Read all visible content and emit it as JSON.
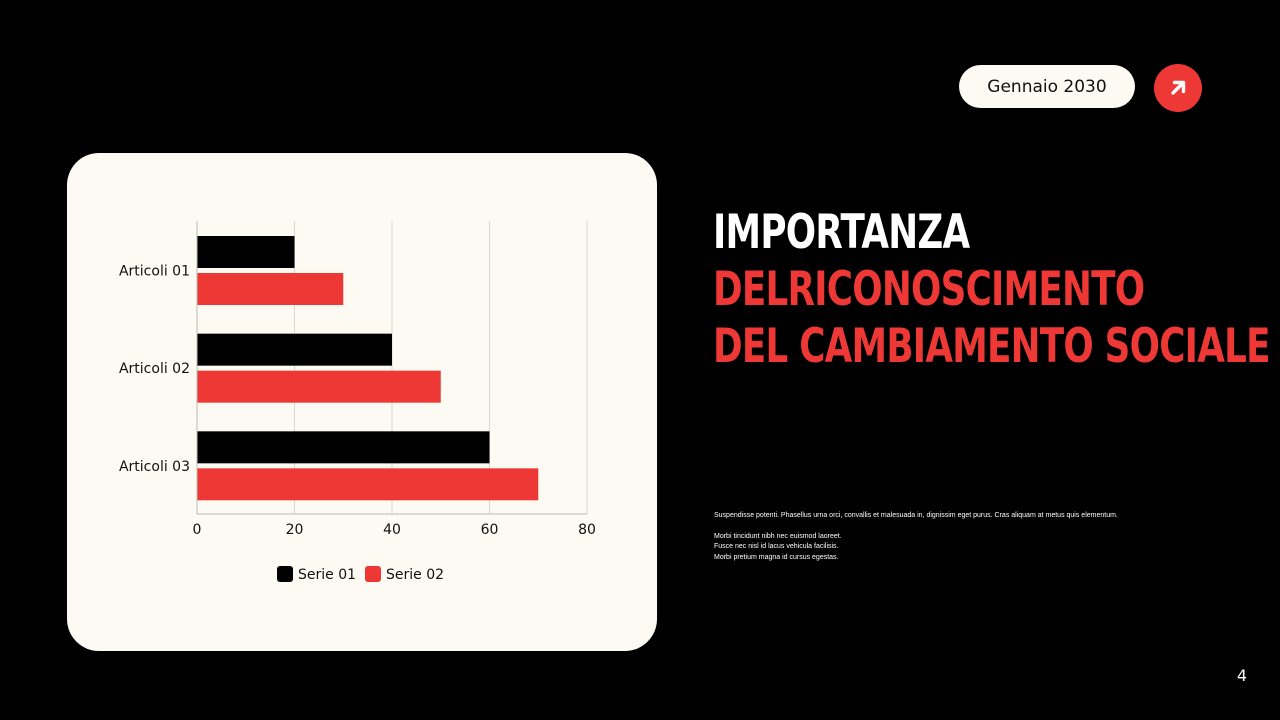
{
  "header": {
    "date": "Gennaio 2030",
    "arrow_icon": "arrow-up-right-icon"
  },
  "title": {
    "line1": "IMPORTANZA",
    "line2": "DELRICONOSCIMENTO",
    "line3": "DEL CAMBIAMENTO SOCIALE"
  },
  "body": {
    "paragraph1": "Suspendisse potenti. Phasellus urna orci, convallis et malesuada in, dignissim eget purus. Cras aliquam at metus quis elementum.",
    "line1": "Morbi tincidunt nibh nec euismod laoreet.",
    "line2": "Fusce nec nisl id lacus vehicula facilisis.",
    "line3": "Morbi pretium magna id cursus egestas."
  },
  "page_number": "4",
  "colors": {
    "accent": "#ee3835",
    "dark": "#000000",
    "card": "#fcfaf2"
  },
  "chart_data": {
    "type": "bar",
    "orientation": "horizontal",
    "categories": [
      "Articoli 01",
      "Articoli 02",
      "Articoli 03"
    ],
    "series": [
      {
        "name": "Serie 01",
        "values": [
          20,
          40,
          60
        ],
        "color": "#000000"
      },
      {
        "name": "Serie 02",
        "values": [
          30,
          50,
          70
        ],
        "color": "#ee3835"
      }
    ],
    "xlim": [
      0,
      80
    ],
    "xticks": [
      0,
      20,
      40,
      60,
      80
    ],
    "legend": "bottom-center",
    "grid": true
  }
}
